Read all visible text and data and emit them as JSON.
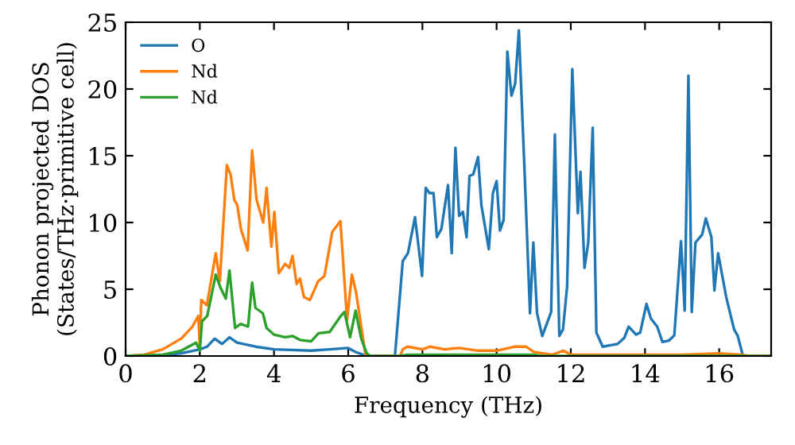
{
  "chart_data": {
    "type": "line",
    "xlabel": "Frequency (THz)",
    "ylabel": "Phonon projected DOS\n(States/THz·primitive cell)",
    "xlim": [
      0,
      17.4
    ],
    "xticks": [
      0,
      2,
      4,
      6,
      8,
      10,
      12,
      14,
      16
    ],
    "ylim": [
      0,
      25
    ],
    "yticks": [
      0,
      5,
      10,
      15,
      20,
      25
    ],
    "grid": false,
    "legend": "top left",
    "marker": "none",
    "line_style": "solid",
    "series": [
      {
        "name": "O",
        "color": "#1f77b4",
        "x": [
          0,
          1,
          1.5,
          2,
          2.2,
          2.4,
          2.6,
          2.8,
          3.0,
          3.5,
          4,
          5,
          5.5,
          6.0,
          6.2,
          6.4,
          6.6,
          7.26,
          7.47,
          7.61,
          7.8,
          7.9,
          7.99,
          8.09,
          8.19,
          8.3,
          8.39,
          8.51,
          8.69,
          8.79,
          8.89,
          8.99,
          9.09,
          9.19,
          9.27,
          9.37,
          9.5,
          9.59,
          9.79,
          9.9,
          10.0,
          10.09,
          10.19,
          10.29,
          10.4,
          10.5,
          10.6,
          10.76,
          10.9,
          10.99,
          11.09,
          11.23,
          11.47,
          11.57,
          11.69,
          11.79,
          11.9,
          12.04,
          12.19,
          12.26,
          12.37,
          12.47,
          12.59,
          12.69,
          12.86,
          13.26,
          13.44,
          13.56,
          13.76,
          13.87,
          14.04,
          14.16,
          14.33,
          14.47,
          14.64,
          14.79,
          14.97,
          15.07,
          15.17,
          15.26,
          15.36,
          15.54,
          15.64,
          15.79,
          15.87,
          15.97,
          16.19,
          16.4,
          16.5,
          16.64,
          17.4
        ],
        "values": [
          0,
          0.05,
          0.2,
          0.5,
          0.7,
          1.3,
          0.9,
          1.4,
          1.0,
          0.7,
          0.5,
          0.4,
          0.5,
          0.6,
          0.3,
          0.1,
          0,
          0,
          7.1,
          7.7,
          10.4,
          8.1,
          6.0,
          12.6,
          12.2,
          12.2,
          8.9,
          9.5,
          12.8,
          7.7,
          15.6,
          10.5,
          10.8,
          8.9,
          13.5,
          13.6,
          14.9,
          11.3,
          8.0,
          12.2,
          13.1,
          9.4,
          10.2,
          22.8,
          19.5,
          20.4,
          24.4,
          13.4,
          3.2,
          8.5,
          3.2,
          1.5,
          3.3,
          16.6,
          1.5,
          2.0,
          5.2,
          21.5,
          10.7,
          13.8,
          6.6,
          8.5,
          17.1,
          1.75,
          0.7,
          0.9,
          1.35,
          2.2,
          1.6,
          1.75,
          3.9,
          2.8,
          2.2,
          1.05,
          1.15,
          1.55,
          8.6,
          3.4,
          21.0,
          3.3,
          8.5,
          9.1,
          10.3,
          8.9,
          4.9,
          7.7,
          4.4,
          2.0,
          1.5,
          0,
          0
        ]
      },
      {
        "name": "Nd",
        "color": "#ff7f0e",
        "x": [
          0,
          0.5,
          1,
          1.5,
          1.8,
          1.96,
          2.0,
          2.04,
          2.19,
          2.43,
          2.54,
          2.73,
          2.83,
          2.93,
          3.01,
          3.11,
          3.29,
          3.41,
          3.53,
          3.71,
          3.8,
          3.93,
          4.01,
          4.13,
          4.3,
          4.41,
          4.5,
          4.61,
          4.7,
          4.81,
          4.97,
          5.19,
          5.36,
          5.57,
          5.79,
          5.97,
          6.1,
          6.21,
          6.47,
          7.4,
          7.47,
          7.6,
          8.0,
          8.2,
          8.6,
          9.0,
          9.5,
          10.0,
          10.5,
          10.8,
          11.0,
          11.5,
          11.8,
          12.0,
          13,
          15,
          16,
          16.6,
          16.8,
          17.4
        ],
        "values": [
          0,
          0.1,
          0.5,
          1.3,
          2.2,
          3.0,
          0.8,
          4.2,
          3.8,
          7.7,
          5.6,
          14.3,
          13.6,
          11.7,
          11.3,
          9.5,
          7.9,
          15.4,
          11.7,
          10.0,
          12.6,
          8.2,
          10.8,
          6.2,
          6.9,
          6.6,
          7.5,
          5.4,
          5.8,
          4.4,
          4.2,
          5.6,
          6.0,
          9.3,
          10.1,
          2.7,
          6.1,
          4.8,
          0,
          0,
          0.5,
          0.7,
          0.5,
          0.7,
          0.5,
          0.6,
          0.4,
          0.4,
          0.7,
          0.7,
          0.3,
          0.1,
          0.4,
          0.1,
          0.1,
          0.1,
          0.2,
          0.1,
          0,
          0
        ]
      },
      {
        "name": "Nd",
        "color": "#2ca02c",
        "x": [
          0,
          1,
          1.5,
          1.9,
          2.0,
          2.06,
          2.2,
          2.43,
          2.56,
          2.7,
          2.8,
          2.95,
          3.1,
          3.3,
          3.41,
          3.5,
          3.7,
          3.8,
          4.0,
          4.3,
          4.5,
          4.7,
          5.0,
          5.2,
          5.5,
          5.8,
          5.9,
          6.05,
          6.2,
          6.35,
          6.5,
          6.6,
          7.4,
          7.6,
          9,
          11,
          11.2,
          17.4
        ],
        "values": [
          0,
          0.1,
          0.4,
          1.0,
          0.4,
          2.6,
          3.0,
          6.1,
          5.1,
          4.3,
          6.4,
          2.1,
          2.4,
          2.2,
          5.5,
          3.6,
          3.2,
          2.1,
          1.6,
          1.4,
          1.5,
          1.2,
          1.1,
          1.7,
          1.8,
          3.0,
          3.3,
          1.4,
          3.4,
          1.3,
          0.2,
          0,
          0,
          0.1,
          0.1,
          0.1,
          0,
          0
        ]
      }
    ]
  }
}
